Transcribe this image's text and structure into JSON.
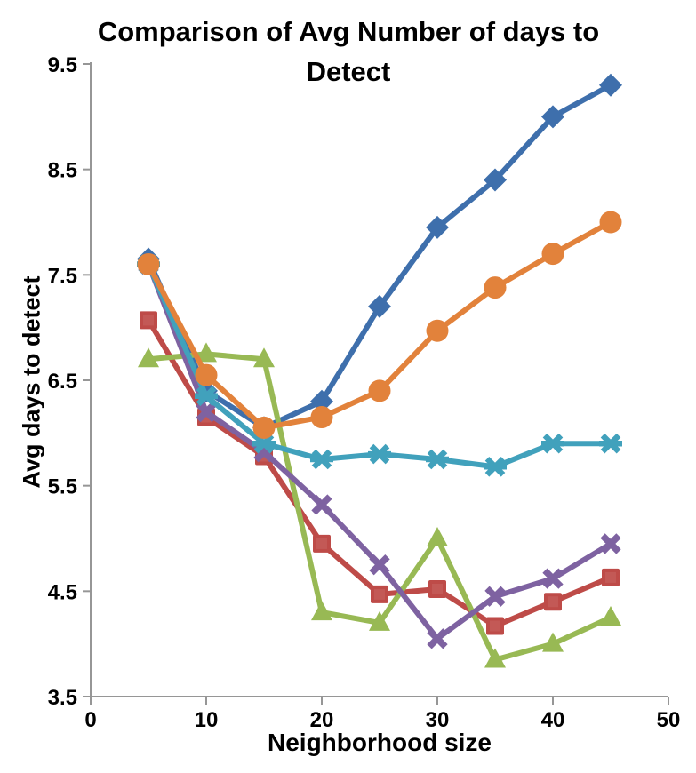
{
  "chart_data": {
    "type": "line",
    "title": "Comparison of Avg Number of days to Detect",
    "xlabel": "Neighborhood size",
    "ylabel": "Avg days to detect",
    "x": [
      5,
      10,
      15,
      20,
      25,
      30,
      35,
      40,
      45
    ],
    "xlim": [
      0,
      50
    ],
    "ylim": [
      3.5,
      9.5
    ],
    "x_ticks": [
      0,
      10,
      20,
      30,
      40,
      50
    ],
    "y_ticks": [
      9.5,
      8.5,
      7.5,
      6.5,
      5.5,
      4.5,
      3.5
    ],
    "grid": false,
    "legend": "none",
    "axis_color": "#969696",
    "series": [
      {
        "name": "blue-diamond",
        "marker": "diamond",
        "color": "#3E6FAC",
        "values": [
          7.65,
          6.4,
          6.05,
          6.3,
          7.2,
          7.95,
          8.4,
          9.0,
          9.3
        ]
      },
      {
        "name": "red-square",
        "marker": "square",
        "color": "#BE4B48",
        "values": [
          7.07,
          6.15,
          5.78,
          4.95,
          4.47,
          4.52,
          4.17,
          4.4,
          4.63
        ]
      },
      {
        "name": "green-triangle",
        "marker": "triangle",
        "color": "#98B954",
        "values": [
          6.7,
          6.75,
          6.7,
          4.3,
          4.2,
          5.0,
          3.85,
          4.0,
          4.25
        ]
      },
      {
        "name": "purple-x",
        "marker": "x",
        "color": "#7E62A1",
        "values": [
          7.6,
          6.2,
          5.82,
          5.32,
          4.75,
          4.05,
          4.45,
          4.62,
          4.95
        ]
      },
      {
        "name": "teal-asterisk",
        "marker": "asterisk",
        "color": "#41A1BC",
        "values": [
          7.6,
          6.35,
          5.9,
          5.75,
          5.8,
          5.75,
          5.68,
          5.9,
          5.9
        ]
      },
      {
        "name": "orange-circle",
        "marker": "circle",
        "color": "#E2823B",
        "values": [
          7.6,
          6.55,
          6.05,
          6.15,
          6.4,
          6.97,
          7.38,
          7.7,
          8.0
        ]
      }
    ]
  }
}
